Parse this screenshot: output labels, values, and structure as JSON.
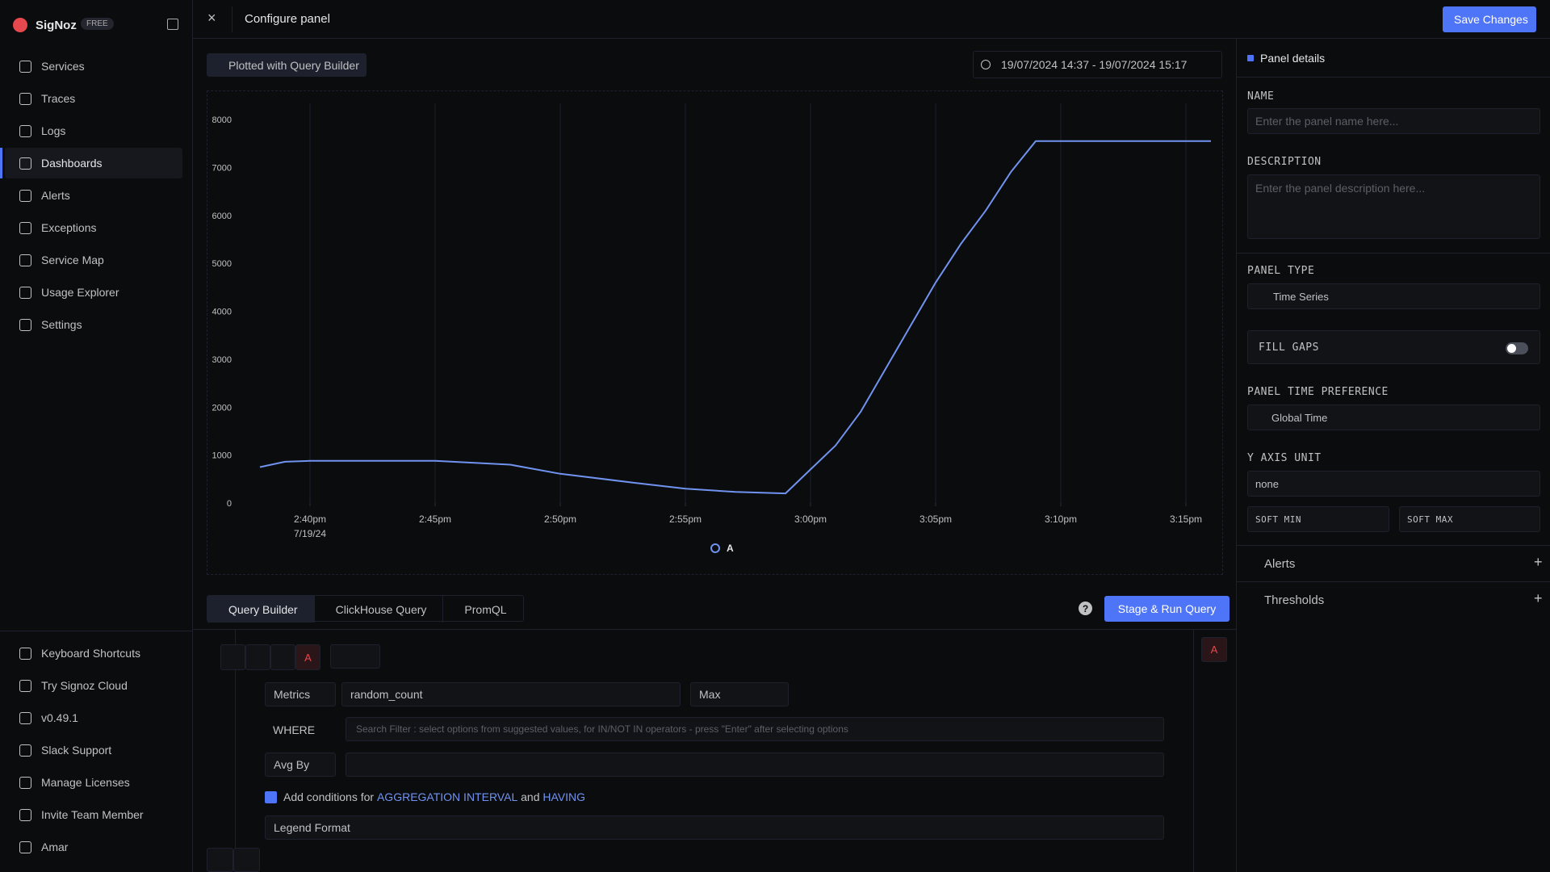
{
  "sidebar": {
    "brand": "SigNoz",
    "badge": "FREE",
    "nav": [
      "Services",
      "Traces",
      "Logs",
      "Dashboards",
      "Alerts",
      "Exceptions",
      "Service Map",
      "Usage Explorer",
      "Settings"
    ],
    "active": "Dashboards",
    "bottom": [
      "Keyboard Shortcuts",
      "Try Signoz Cloud",
      "v0.49.1",
      "Slack Support",
      "Manage Licenses",
      "Invite Team Member",
      "Amar"
    ]
  },
  "header": {
    "title": "Configure panel",
    "save_button": "Save Changes"
  },
  "toolbar": {
    "plotted_with": "Plotted with",
    "plotted_source": "Query Builder",
    "time_range": "19/07/2024 14:37 - 19/07/2024 15:17"
  },
  "chart_data": {
    "type": "line",
    "x": [
      "2:38pm",
      "2:39pm",
      "2:40pm",
      "2:45pm",
      "2:48pm",
      "2:50pm",
      "2:53pm",
      "2:55pm",
      "2:57pm",
      "2:59pm",
      "3:00pm",
      "3:01pm",
      "3:02pm",
      "3:03pm",
      "3:04pm",
      "3:05pm",
      "3:06pm",
      "3:07pm",
      "3:08pm",
      "3:09pm",
      "3:12pm",
      "3:16pm"
    ],
    "series": [
      {
        "name": "A",
        "color": "#7193f0",
        "values": [
          750,
          860,
          880,
          880,
          800,
          610,
          420,
          300,
          230,
          200,
          700,
          1200,
          1900,
          2800,
          3700,
          4600,
          5400,
          6100,
          6900,
          7550,
          7550,
          7550
        ]
      }
    ],
    "xlim": [
      "2:38pm",
      "3:16pm"
    ],
    "xticks": [
      "2:40pm",
      "2:45pm",
      "2:50pm",
      "2:55pm",
      "3:00pm",
      "3:05pm",
      "3:10pm",
      "3:15pm"
    ],
    "x_date_label": "7/19/24",
    "ylim": [
      0,
      8000
    ],
    "yticks": [
      0,
      1000,
      2000,
      3000,
      4000,
      5000,
      6000,
      7000,
      8000
    ],
    "grid": true,
    "legend": "bottom"
  },
  "query_tabs": {
    "tabs": [
      "Query Builder",
      "ClickHouse Query",
      "PromQL"
    ],
    "active": "Query Builder",
    "run_button": "Stage & Run Query"
  },
  "query": {
    "name": "A",
    "data_source": "Metrics",
    "metric": "random_count",
    "aggregation": "Max",
    "where_label": "WHERE",
    "where_placeholder": "Search Filter : select options from suggested values, for IN/NOT IN operators - press \"Enter\" after selecting options",
    "group_by": "Avg By",
    "conditions_prefix": "Add conditions for",
    "conditions_interval": "AGGREGATION INTERVAL",
    "conditions_and": "and",
    "conditions_having": "HAVING",
    "legend_format": "Legend Format",
    "side_badge": "A"
  },
  "panel_details": {
    "title": "Panel details",
    "name_label": "NAME",
    "name_placeholder": "Enter the panel name here...",
    "description_label": "DESCRIPTION",
    "description_placeholder": "Enter the panel description here...",
    "panel_type_label": "PANEL TYPE",
    "panel_type": "Time Series",
    "fill_gaps_label": "FILL GAPS",
    "time_preference_label": "PANEL TIME PREFERENCE",
    "time_preference": "Global Time",
    "y_axis_unit_label": "Y AXIS UNIT",
    "y_axis_unit": "none",
    "soft_min_label": "SOFT MIN",
    "soft_max_label": "SOFT MAX",
    "alerts": "Alerts",
    "thresholds": "Thresholds"
  }
}
